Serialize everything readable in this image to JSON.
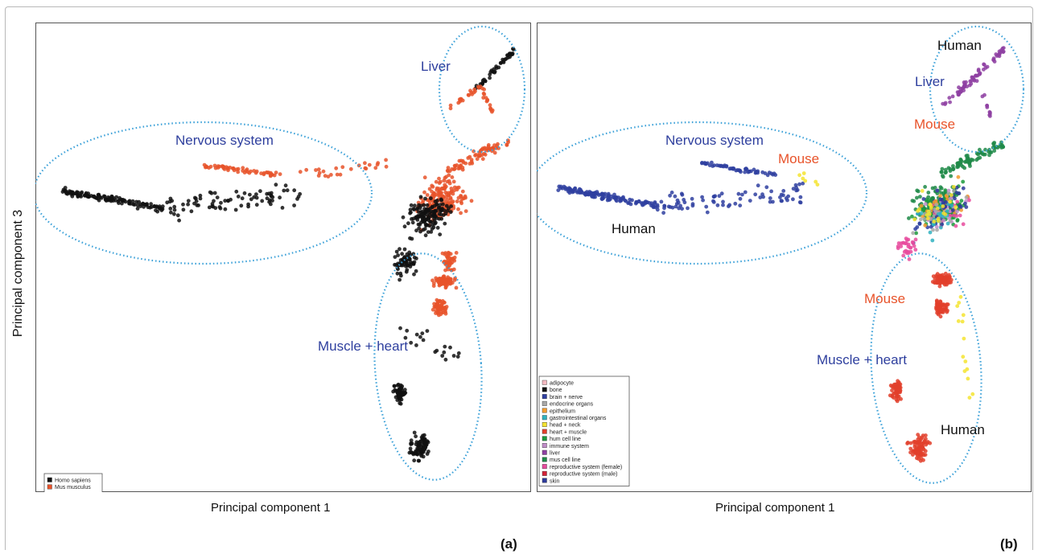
{
  "figure": {
    "y_axis_label": "Principal component 3",
    "panel_a_tag": "(a)",
    "panel_b_tag": "(b)"
  },
  "chart_data": [
    {
      "panel": "a",
      "type": "scatter",
      "xlabel": "Principal component   1",
      "ylabel": "Principal component 3",
      "grid": false,
      "legend_position": "bottom-left",
      "legend": [
        {
          "name": "Homo sapiens",
          "color": "#111111"
        },
        {
          "name": "Mus musculus",
          "color": "#e8532a"
        }
      ],
      "annotations": [
        {
          "text": "Liver",
          "color": "#2e3f9e"
        },
        {
          "text": "Nervous system",
          "color": "#2e3f9e"
        },
        {
          "text": "Muscle + heart",
          "color": "#2e3f9e"
        }
      ]
    },
    {
      "panel": "b",
      "type": "scatter",
      "xlabel": "Principal component 1",
      "ylabel": "Principal component 3",
      "grid": false,
      "legend_position": "bottom-left",
      "legend": [
        {
          "name": "adipocyte",
          "color": "#f4b9c0"
        },
        {
          "name": "bone",
          "color": "#111111"
        },
        {
          "name": "brain + nerve",
          "color": "#2f3fa0"
        },
        {
          "name": "endocrine organs",
          "color": "#a8a8a8"
        },
        {
          "name": "epithelium",
          "color": "#f29a2e"
        },
        {
          "name": "gastrointestinal organs",
          "color": "#2fb2c0"
        },
        {
          "name": "head + neck",
          "color": "#f5e430"
        },
        {
          "name": "heart + muscle",
          "color": "#e23f2b"
        },
        {
          "name": "hum cell line",
          "color": "#1c9a3c"
        },
        {
          "name": "immune system",
          "color": "#c08cc8"
        },
        {
          "name": "liver",
          "color": "#8e3fa2"
        },
        {
          "name": "mus cell line",
          "color": "#1f8a48"
        },
        {
          "name": "reproductive system (female)",
          "color": "#e84b9e"
        },
        {
          "name": "reproductive system (male)",
          "color": "#d42338"
        },
        {
          "name": "skin",
          "color": "#2d3a9a"
        }
      ],
      "annotations": [
        {
          "text": "Human",
          "color": "#111111"
        },
        {
          "text": "Liver",
          "color": "#2e3f9e"
        },
        {
          "text": "Mouse",
          "color": "#e8532a"
        },
        {
          "text": "Nervous system",
          "color": "#2e3f9e"
        },
        {
          "text": "Mouse",
          "color": "#e8532a"
        },
        {
          "text": "Human",
          "color": "#111111"
        },
        {
          "text": "Mouse",
          "color": "#e8532a"
        },
        {
          "text": "Muscle + heart",
          "color": "#2e3f9e"
        },
        {
          "text": "Human",
          "color": "#111111"
        }
      ]
    }
  ]
}
